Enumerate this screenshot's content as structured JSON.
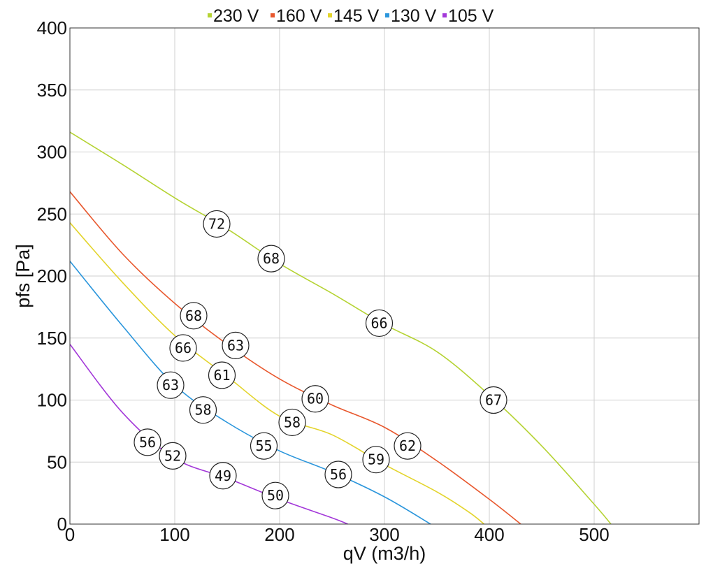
{
  "chart_data": {
    "type": "line",
    "title": "",
    "xlabel": "qV (m3/h)",
    "ylabel": "pfs [Pa]",
    "xlim": [
      0,
      600
    ],
    "ylim": [
      0,
      400
    ],
    "x_ticks": [
      0,
      100,
      200,
      300,
      400,
      500
    ],
    "y_ticks": [
      0,
      50,
      100,
      150,
      200,
      250,
      300,
      350,
      400
    ],
    "grid": true,
    "legend_position": "top",
    "series": [
      {
        "name": "230 V",
        "color": "#b5d333",
        "points": [
          [
            0,
            316
          ],
          [
            50,
            290
          ],
          [
            100,
            263
          ],
          [
            150,
            238
          ],
          [
            200,
            210
          ],
          [
            250,
            186
          ],
          [
            300,
            161
          ],
          [
            350,
            139
          ],
          [
            400,
            104
          ],
          [
            450,
            63
          ],
          [
            500,
            16
          ],
          [
            516,
            0
          ]
        ],
        "markers": [
          {
            "x": 140,
            "y": 242,
            "label": "72"
          },
          {
            "x": 192,
            "y": 214,
            "label": "68"
          },
          {
            "x": 295,
            "y": 162,
            "label": "66"
          },
          {
            "x": 404,
            "y": 100,
            "label": "67"
          }
        ]
      },
      {
        "name": "160 V",
        "color": "#e8582e",
        "points": [
          [
            0,
            268
          ],
          [
            50,
            218
          ],
          [
            100,
            178
          ],
          [
            150,
            145
          ],
          [
            200,
            117
          ],
          [
            250,
            96
          ],
          [
            300,
            78
          ],
          [
            350,
            51
          ],
          [
            400,
            20
          ],
          [
            430,
            0
          ]
        ],
        "markers": [
          {
            "x": 118,
            "y": 168,
            "label": "68"
          },
          {
            "x": 158,
            "y": 144,
            "label": "63"
          },
          {
            "x": 234,
            "y": 101,
            "label": "60"
          },
          {
            "x": 322,
            "y": 63,
            "label": "62"
          }
        ]
      },
      {
        "name": "145 V",
        "color": "#e3d42b",
        "points": [
          [
            0,
            243
          ],
          [
            50,
            195
          ],
          [
            100,
            152
          ],
          [
            150,
            119
          ],
          [
            200,
            87
          ],
          [
            250,
            72
          ],
          [
            300,
            48
          ],
          [
            350,
            26
          ],
          [
            380,
            10
          ],
          [
            395,
            0
          ]
        ],
        "markers": [
          {
            "x": 108,
            "y": 142,
            "label": "66"
          },
          {
            "x": 145,
            "y": 120,
            "label": "61"
          },
          {
            "x": 212,
            "y": 82,
            "label": "58"
          },
          {
            "x": 292,
            "y": 52,
            "label": "59"
          }
        ]
      },
      {
        "name": "130 V",
        "color": "#2b96dc",
        "points": [
          [
            0,
            212
          ],
          [
            50,
            160
          ],
          [
            100,
            112
          ],
          [
            150,
            82
          ],
          [
            200,
            59
          ],
          [
            250,
            42
          ],
          [
            300,
            22
          ],
          [
            344,
            0
          ]
        ],
        "markers": [
          {
            "x": 96,
            "y": 112,
            "label": "63"
          },
          {
            "x": 127,
            "y": 92,
            "label": "58"
          },
          {
            "x": 185,
            "y": 63,
            "label": "55"
          },
          {
            "x": 256,
            "y": 40,
            "label": "56"
          }
        ]
      },
      {
        "name": "105 V",
        "color": "#a338d9",
        "points": [
          [
            0,
            145
          ],
          [
            50,
            90
          ],
          [
            100,
            53
          ],
          [
            150,
            37
          ],
          [
            200,
            20
          ],
          [
            250,
            5
          ],
          [
            265,
            0
          ]
        ],
        "markers": [
          {
            "x": 74,
            "y": 66,
            "label": "56"
          },
          {
            "x": 98,
            "y": 55,
            "label": "52"
          },
          {
            "x": 146,
            "y": 39,
            "label": "49"
          },
          {
            "x": 196,
            "y": 23,
            "label": "50"
          }
        ]
      }
    ]
  }
}
